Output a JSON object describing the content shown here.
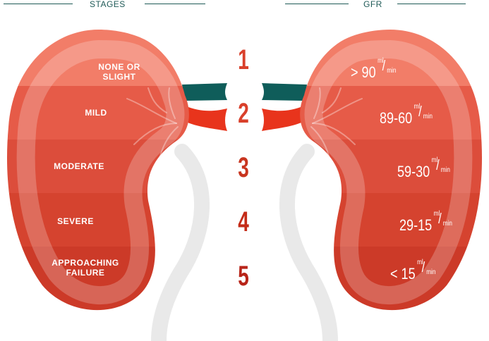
{
  "headers": {
    "left": "STAGES",
    "right": "GFR"
  },
  "colors": {
    "header": "#1f5a57",
    "vessel_artery": "#e8341c",
    "vessel_vein": "#0f5d5a",
    "stage_number": [
      "#d9402b",
      "#d9402b",
      "#c8351f",
      "#c42c18",
      "#b8251a"
    ],
    "bands": [
      "#f27d68",
      "#e65b48",
      "#dc4d3b",
      "#d5432f",
      "#cc3a28"
    ]
  },
  "stages": [
    {
      "number": "1",
      "label_lines": [
        "NONE OR",
        "SLIGHT"
      ],
      "gfr_value": "> 90",
      "gfr_unit_top": "ml",
      "gfr_unit_bottom": "min"
    },
    {
      "number": "2",
      "label_lines": [
        "MILD"
      ],
      "gfr_value": "89-60",
      "gfr_unit_top": "ml",
      "gfr_unit_bottom": "min"
    },
    {
      "number": "3",
      "label_lines": [
        "MODERATE"
      ],
      "gfr_value": "59-30",
      "gfr_unit_top": "ml",
      "gfr_unit_bottom": "min"
    },
    {
      "number": "4",
      "label_lines": [
        "SEVERE"
      ],
      "gfr_value": "29-15",
      "gfr_unit_top": "ml",
      "gfr_unit_bottom": "min"
    },
    {
      "number": "5",
      "label_lines": [
        "APPROACHING",
        "FAILURE"
      ],
      "gfr_value": "< 15",
      "gfr_unit_top": "ml",
      "gfr_unit_bottom": "min"
    }
  ]
}
